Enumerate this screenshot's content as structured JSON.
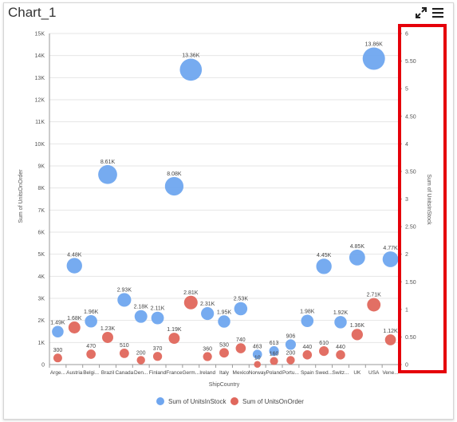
{
  "header": {
    "title": "Chart_1",
    "expand_icon": "expand-icon",
    "menu_icon": "hamburger-menu-icon"
  },
  "chart_data": {
    "type": "scatter",
    "variant": "bubble",
    "xlabel": "ShipCountry",
    "ylabel": "Sum of UnitsOnOrder",
    "y2label": "Sum of UnitsInStock",
    "ylim": [
      0,
      15000
    ],
    "y2lim": [
      0,
      6
    ],
    "y_ticks": [
      "0",
      "1K",
      "2K",
      "3K",
      "4K",
      "5K",
      "6K",
      "7K",
      "8K",
      "9K",
      "10K",
      "11K",
      "12K",
      "13K",
      "14K",
      "15K"
    ],
    "y2_ticks": [
      "0",
      "0.50",
      "1",
      "1.50",
      "2",
      "2.50",
      "3",
      "3.50",
      "4",
      "4.50",
      "5",
      "5.50",
      "6"
    ],
    "grid": true,
    "legend_position": "bottom",
    "categories": [
      "Arge...",
      "Austria",
      "Belgi...",
      "Brazil",
      "Canada",
      "Den...",
      "Finland",
      "France",
      "Germ...",
      "Ireland",
      "Italy",
      "Mexico",
      "Norway",
      "Poland",
      "Portu...",
      "Spain",
      "Swed...",
      "Switz...",
      "UK",
      "USA",
      "Vene..."
    ],
    "series": [
      {
        "name": "Sum of UnitsInStock",
        "color": "#6fa6ef",
        "values": [
          1490,
          4480,
          1960,
          8610,
          2930,
          2180,
          2110,
          8080,
          13360,
          2310,
          1950,
          2530,
          463,
          613,
          906,
          1980,
          4450,
          1920,
          4850,
          13860,
          4770
        ],
        "labels": [
          "1.49K",
          "4.48K",
          "1.96K",
          "8.61K",
          "2.93K",
          "2.18K",
          "2.11K",
          "8.08K",
          "13.36K",
          "2.31K",
          "1.95K",
          "2.53K",
          "463",
          "613",
          "906",
          "1.98K",
          "4.45K",
          "1.92K",
          "4.85K",
          "13.86K",
          "4.77K"
        ]
      },
      {
        "name": "Sum of UnitsOnOrder",
        "color": "#e0675c",
        "values": [
          300,
          1680,
          470,
          1230,
          510,
          200,
          370,
          1190,
          2810,
          360,
          530,
          740,
          10,
          160,
          200,
          440,
          610,
          440,
          1360,
          2710,
          1120
        ],
        "labels": [
          "300",
          "1.68K",
          "470",
          "1.23K",
          "510",
          "200",
          "370",
          "1.19K",
          "2.81K",
          "360",
          "530",
          "740",
          "10",
          "160",
          "200",
          "440",
          "610",
          "440",
          "1.36K",
          "2.71K",
          "1.12K"
        ]
      }
    ]
  }
}
